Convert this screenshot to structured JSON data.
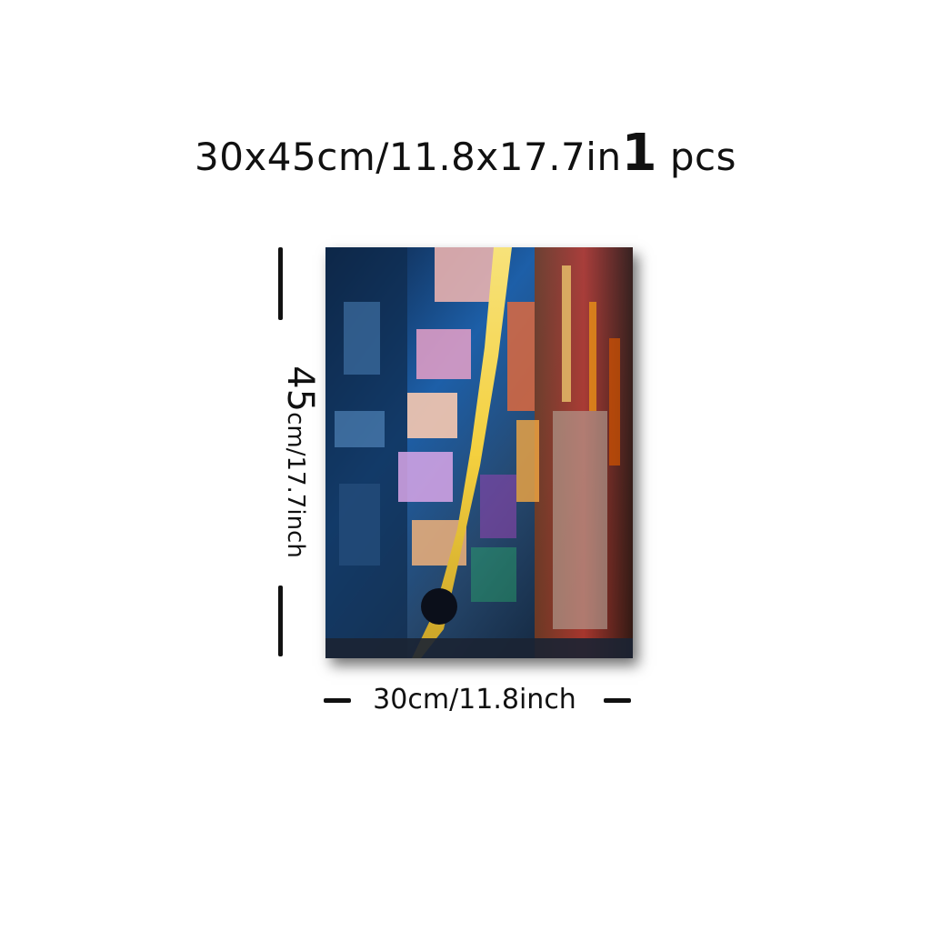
{
  "header": {
    "size_text": "30x45cm/11.8x17.7in",
    "qty_number": "1",
    "qty_unit": " pcs"
  },
  "product": {
    "image_name": "abstract-cityscape-canvas-painting",
    "palette": [
      "#0c1f3d",
      "#1d5fa8",
      "#f4d03f",
      "#e86a3a",
      "#c0392b",
      "#2ecc71",
      "#8e44ad",
      "#f5b7b1"
    ]
  },
  "dimensions": {
    "height_number": "45",
    "height_unit": "cm/17.7inch",
    "width_label": "30cm/11.8inch"
  }
}
